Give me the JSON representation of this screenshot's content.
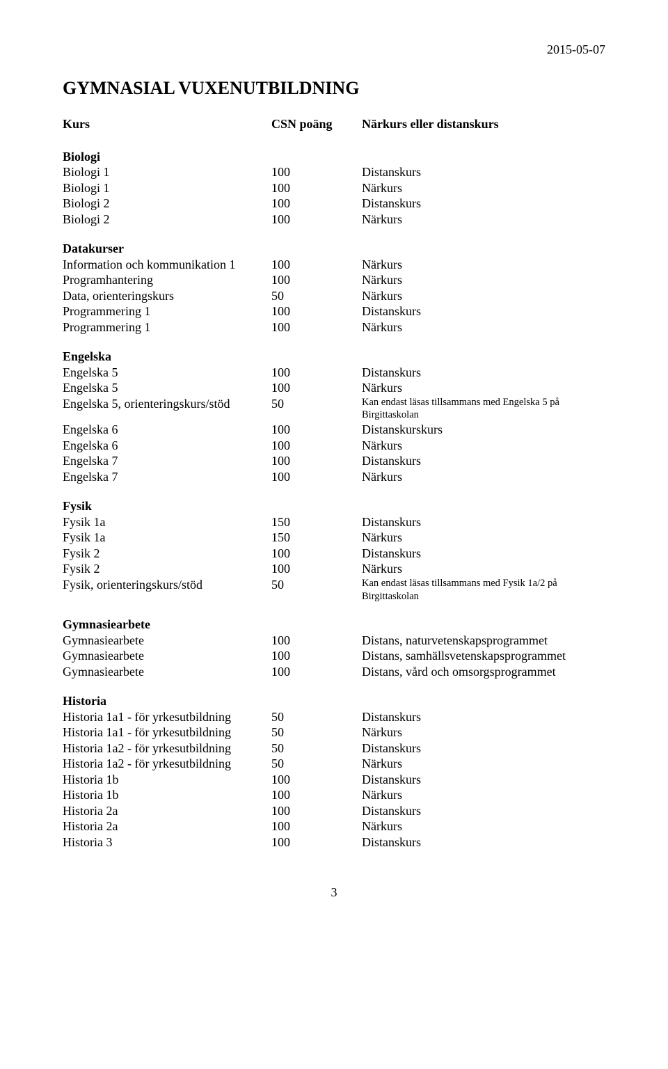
{
  "date": "2015-05-07",
  "title": "GYMNASIAL VUXENUTBILDNING",
  "header": {
    "c1": "Kurs",
    "c2": "CSN poäng",
    "c3": "Närkurs eller distanskurs"
  },
  "sections": [
    {
      "title": "Biologi",
      "rows": [
        {
          "c1": "Biologi 1",
          "c2": "100",
          "c3": "Distanskurs"
        },
        {
          "c1": "Biologi 1",
          "c2": "100",
          "c3": "Närkurs"
        },
        {
          "c1": "Biologi 2",
          "c2": "100",
          "c3": "Distanskurs"
        },
        {
          "c1": "Biologi 2",
          "c2": "100",
          "c3": "Närkurs"
        }
      ]
    },
    {
      "title": "Datakurser",
      "rows": [
        {
          "c1": "Information och kommunikation 1",
          "c2": "100",
          "c3": "Närkurs"
        },
        {
          "c1": "Programhantering",
          "c2": "100",
          "c3": "Närkurs"
        },
        {
          "c1": "Data, orienteringskurs",
          "c2": "50",
          "c3": "Närkurs"
        },
        {
          "c1": "Programmering 1",
          "c2": "100",
          "c3": "Distanskurs"
        },
        {
          "c1": "Programmering 1",
          "c2": "100",
          "c3": "Närkurs"
        }
      ]
    },
    {
      "title": "Engelska",
      "rows": [
        {
          "c1": "Engelska 5",
          "c2": "100",
          "c3": "Distanskurs"
        },
        {
          "c1": "Engelska 5",
          "c2": "100",
          "c3": "Närkurs"
        },
        {
          "c1": "Engelska 5, orienteringskurs/stöd",
          "c2": "50",
          "c3": "Kan endast läsas tillsammans med Engelska 5 på Birgittaskolan",
          "note": true
        },
        {
          "c1": "Engelska 6",
          "c2": "100",
          "c3": "Distanskurskurs"
        },
        {
          "c1": "Engelska 6",
          "c2": "100",
          "c3": "Närkurs"
        },
        {
          "c1": "Engelska 7",
          "c2": "100",
          "c3": "Distanskurs"
        },
        {
          "c1": "Engelska 7",
          "c2": "100",
          "c3": "Närkurs"
        }
      ]
    },
    {
      "title": "Fysik",
      "rows": [
        {
          "c1": "Fysik 1a",
          "c2": "150",
          "c3": "Distanskurs"
        },
        {
          "c1": "Fysik 1a",
          "c2": "150",
          "c3": "Närkurs"
        },
        {
          "c1": "Fysik 2",
          "c2": "100",
          "c3": "Distanskurs"
        },
        {
          "c1": "Fysik 2",
          "c2": "100",
          "c3": "Närkurs"
        },
        {
          "c1": "Fysik, orienteringskurs/stöd",
          "c2": "50",
          "c3": "Kan endast läsas tillsammans med Fysik 1a/2 på Birgittaskolan",
          "note": true
        }
      ]
    },
    {
      "title": "Gymnasiearbete",
      "rows": [
        {
          "c1": "Gymnasiearbete",
          "c2": "100",
          "c3": "Distans, naturvetenskapsprogrammet"
        },
        {
          "c1": "Gymnasiearbete",
          "c2": "100",
          "c3": "Distans, samhällsvetenskapsprogrammet"
        },
        {
          "c1": "Gymnasiearbete",
          "c2": "100",
          "c3": "Distans, vård och omsorgsprogrammet"
        }
      ]
    },
    {
      "title": "Historia",
      "rows": [
        {
          "c1": "Historia 1a1 - för yrkesutbildning",
          "c2": "50",
          "c3": "Distanskurs"
        },
        {
          "c1": "Historia 1a1 - för yrkesutbildning",
          "c2": "50",
          "c3": "Närkurs"
        },
        {
          "c1": "Historia 1a2 - för yrkesutbildning",
          "c2": "50",
          "c3": "Distanskurs"
        },
        {
          "c1": "Historia 1a2 - för yrkesutbildning",
          "c2": "50",
          "c3": "Närkurs"
        },
        {
          "c1": "Historia 1b",
          "c2": "100",
          "c3": "Distanskurs"
        },
        {
          "c1": "Historia 1b",
          "c2": "100",
          "c3": "Närkurs"
        },
        {
          "c1": "Historia 2a",
          "c2": "100",
          "c3": "Distanskurs"
        },
        {
          "c1": "Historia 2a",
          "c2": "100",
          "c3": "Närkurs"
        },
        {
          "c1": "Historia 3",
          "c2": "100",
          "c3": "Distanskurs"
        }
      ]
    }
  ],
  "page_number": "3"
}
